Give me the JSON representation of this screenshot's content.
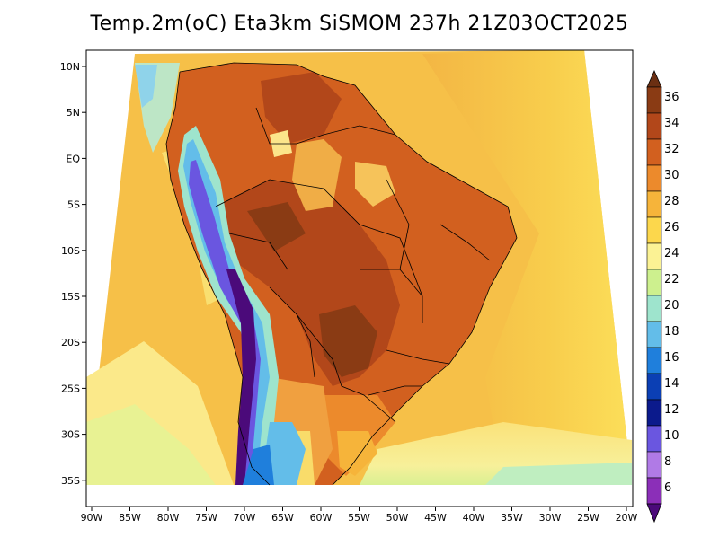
{
  "title": "Temp.2m(oC) Eta3km SiSMOM 237h 21Z03OCT2025",
  "map": {
    "lat_labels": [
      "10N",
      "5N",
      "EQ",
      "5S",
      "10S",
      "15S",
      "20S",
      "25S",
      "30S",
      "35S"
    ],
    "lon_labels": [
      "90W",
      "85W",
      "80W",
      "75W",
      "70W",
      "65W",
      "60W",
      "55W",
      "50W",
      "45W",
      "40W",
      "35W",
      "30W",
      "25W",
      "20W"
    ]
  },
  "colorbar": {
    "labels": [
      "36",
      "34",
      "32",
      "30",
      "28",
      "26",
      "24",
      "22",
      "20",
      "18",
      "16",
      "14",
      "12",
      "10",
      "8",
      "6"
    ],
    "colors": [
      "#6b2f12",
      "#8a3b14",
      "#b2471a",
      "#d2601f",
      "#ec8a2c",
      "#f6b43a",
      "#fcd74c",
      "#fbf294",
      "#cdf08e",
      "#9ee4cd",
      "#63bde9",
      "#1f7fdc",
      "#0b3fb4",
      "#0b1a8c",
      "#6a56e0",
      "#b07ae6",
      "#8b2fb8",
      "#4b0a7a"
    ]
  }
}
